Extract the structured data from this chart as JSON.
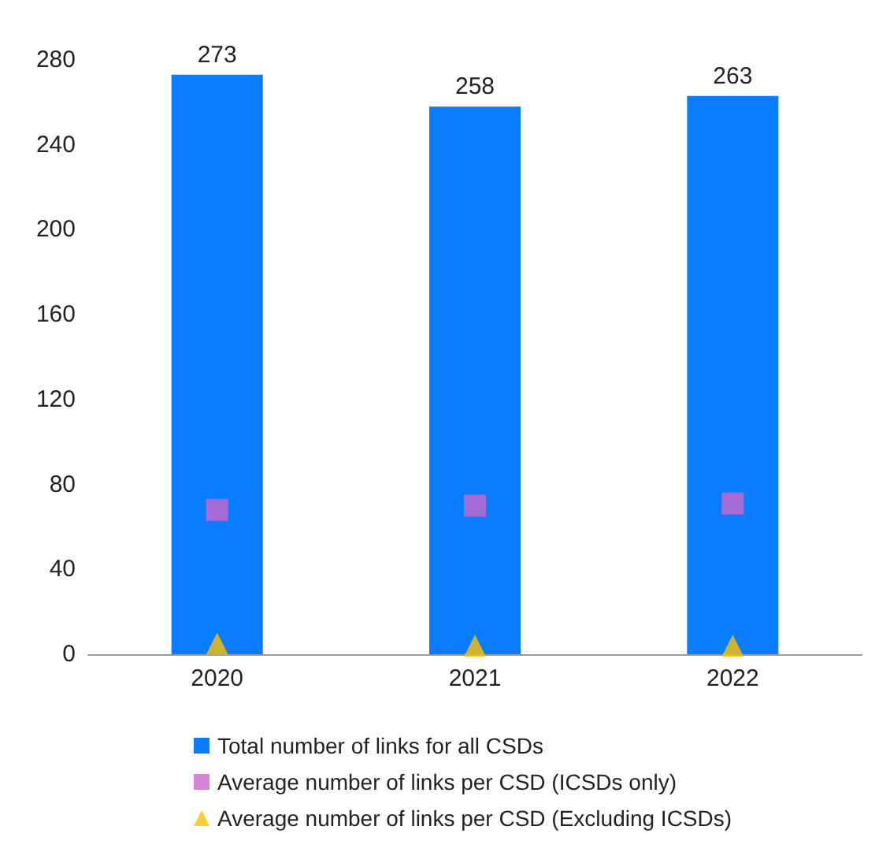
{
  "chart_data": {
    "type": "bar",
    "categories": [
      "2020",
      "2021",
      "2022"
    ],
    "series": [
      {
        "name": "Total number of links for all CSDs",
        "color": "#0a7cff",
        "values": [
          273,
          258,
          263
        ],
        "data_labels": true
      },
      {
        "name": "Average number of links per CSD (ICSDs only)",
        "type": "scatter",
        "marker": "square",
        "color": "#cc66cc",
        "values": [
          68,
          70,
          71
        ]
      },
      {
        "name": "Average number of links per CSD (Excluding ICSDs)",
        "type": "scatter",
        "marker": "triangle",
        "color": "#ffc000",
        "values": [
          5,
          4,
          4
        ]
      }
    ],
    "ylim": [
      0,
      280
    ],
    "yticks": [
      0,
      40,
      80,
      120,
      160,
      200,
      240,
      280
    ],
    "grid": false,
    "legend": "bottom"
  }
}
